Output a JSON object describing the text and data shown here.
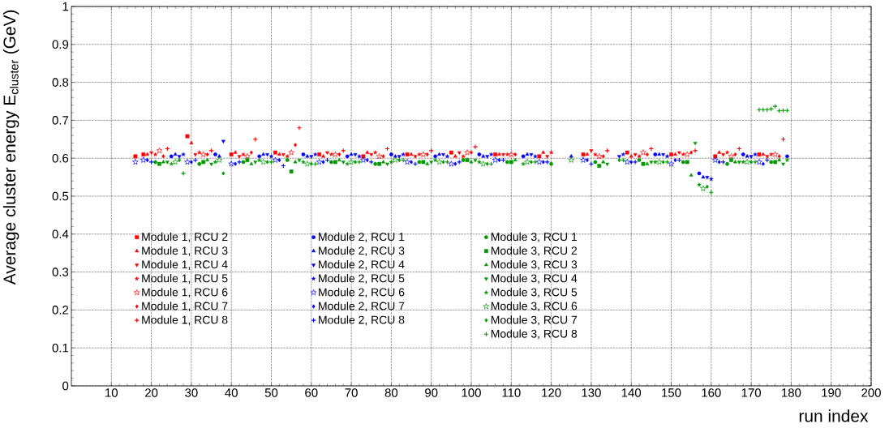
{
  "chart_data": {
    "type": "scatter",
    "xlabel": "run index",
    "ylabel": "Average cluster energy E$_{cluster}$ (GeV)",
    "xlim": [
      0,
      200
    ],
    "ylim": [
      0,
      1
    ],
    "xticks": [
      10,
      20,
      30,
      40,
      50,
      60,
      70,
      80,
      90,
      100,
      110,
      120,
      130,
      140,
      150,
      160,
      170,
      180,
      190,
      200
    ],
    "yticks": [
      0,
      0.1,
      0.2,
      0.3,
      0.4,
      0.5,
      0.6,
      0.7,
      0.8,
      0.9,
      1
    ],
    "grid": true,
    "legend": "bottom",
    "series": [
      {
        "name": "Module 1, RCU 2",
        "color": "#ff0000",
        "marker": "square",
        "x": [
          16,
          18,
          29,
          40,
          51,
          62,
          73,
          84,
          95,
          106,
          117,
          128,
          139,
          150,
          161,
          172
        ],
        "values": [
          0.605,
          0.61,
          0.658,
          0.61,
          0.615,
          0.61,
          0.605,
          0.61,
          0.615,
          0.61,
          0.605,
          0.61,
          0.615,
          0.61,
          0.605,
          0.61
        ]
      },
      {
        "name": "Module 1, RCU 3",
        "color": "#ff0000",
        "marker": "triangle",
        "x": [
          19,
          30,
          41,
          52,
          63,
          74,
          85,
          96,
          107,
          118,
          129,
          140,
          151,
          162,
          173
        ],
        "values": [
          0.61,
          0.64,
          0.615,
          0.61,
          0.605,
          0.615,
          0.61,
          0.605,
          0.61,
          0.615,
          0.61,
          0.605,
          0.61,
          0.615,
          0.61
        ]
      },
      {
        "name": "Module 1, RCU 4",
        "color": "#ff0000",
        "marker": "triangle-down",
        "x": [
          20,
          31,
          42,
          53,
          64,
          75,
          86,
          97,
          108,
          119,
          130,
          141,
          152,
          163,
          174
        ],
        "values": [
          0.615,
          0.61,
          0.605,
          0.61,
          0.615,
          0.61,
          0.605,
          0.615,
          0.61,
          0.605,
          0.62,
          0.61,
          0.615,
          0.61,
          0.605
        ]
      },
      {
        "name": "Module 1, RCU 5",
        "color": "#ff0000",
        "marker": "star",
        "x": [
          21,
          32,
          43,
          54,
          65,
          76,
          87,
          98,
          109,
          120,
          131,
          142,
          153,
          164,
          175
        ],
        "values": [
          0.61,
          0.615,
          0.61,
          0.605,
          0.61,
          0.615,
          0.61,
          0.605,
          0.61,
          0.615,
          0.61,
          0.605,
          0.61,
          0.615,
          0.61
        ]
      },
      {
        "name": "Module 1, RCU 6",
        "color": "#ff0000",
        "marker": "star-open",
        "x": [
          22,
          33,
          44,
          55,
          66,
          77,
          88,
          99,
          110,
          132,
          143,
          154,
          165,
          176
        ],
        "values": [
          0.62,
          0.61,
          0.605,
          0.615,
          0.61,
          0.605,
          0.61,
          0.615,
          0.61,
          0.605,
          0.615,
          0.61,
          0.605,
          0.61
        ]
      },
      {
        "name": "Module 1, RCU 7",
        "color": "#ff0000",
        "marker": "diamond",
        "x": [
          23,
          34,
          45,
          56,
          67,
          78,
          89,
          100,
          111,
          133,
          144,
          155,
          166,
          177
        ],
        "values": [
          0.605,
          0.61,
          0.615,
          0.635,
          0.61,
          0.605,
          0.61,
          0.615,
          0.61,
          0.605,
          0.61,
          0.615,
          0.61,
          0.605
        ]
      },
      {
        "name": "Module 1, RCU 8",
        "color": "#ff0000",
        "marker": "cross",
        "x": [
          24,
          35,
          46,
          57,
          68,
          79,
          90,
          101,
          134,
          145,
          156,
          167,
          178
        ],
        "values": [
          0.625,
          0.62,
          0.65,
          0.68,
          0.62,
          0.625,
          0.62,
          0.63,
          0.62,
          0.625,
          0.62,
          0.625,
          0.65
        ]
      },
      {
        "name": "Module 2, RCU 1",
        "color": "#0000ff",
        "marker": "circle",
        "x": [
          25,
          36,
          47,
          58,
          69,
          80,
          91,
          102,
          113,
          146,
          157,
          168,
          179
        ],
        "values": [
          0.605,
          0.61,
          0.605,
          0.61,
          0.605,
          0.61,
          0.605,
          0.61,
          0.605,
          0.61,
          0.56,
          0.61,
          0.605
        ]
      },
      {
        "name": "Module 2, RCU 3",
        "color": "#0000ff",
        "marker": "triangle",
        "x": [
          26,
          37,
          48,
          59,
          70,
          81,
          92,
          103,
          114,
          125,
          147,
          158,
          169
        ],
        "values": [
          0.61,
          0.605,
          0.61,
          0.605,
          0.61,
          0.605,
          0.61,
          0.605,
          0.61,
          0.605,
          0.61,
          0.55,
          0.605
        ]
      },
      {
        "name": "Module 2, RCU 4",
        "color": "#0000ff",
        "marker": "triangle-down",
        "x": [
          27,
          38,
          49,
          60,
          71,
          82,
          93,
          104,
          115,
          137,
          148,
          159,
          170
        ],
        "values": [
          0.605,
          0.645,
          0.61,
          0.605,
          0.61,
          0.605,
          0.61,
          0.605,
          0.61,
          0.605,
          0.61,
          0.55,
          0.605
        ]
      },
      {
        "name": "Module 2, RCU 5",
        "color": "#0000ff",
        "marker": "star",
        "x": [
          28,
          50,
          61,
          72,
          83,
          94,
          105,
          116,
          138,
          149,
          160,
          171
        ],
        "values": [
          0.61,
          0.605,
          0.61,
          0.605,
          0.61,
          0.605,
          0.61,
          0.605,
          0.61,
          0.605,
          0.545,
          0.61
        ]
      },
      {
        "name": "Module 2, RCU 6",
        "color": "#0000ff",
        "marker": "star-open",
        "x": [
          16,
          18,
          29,
          40,
          51,
          62,
          73,
          84,
          95,
          106,
          117,
          128,
          139,
          150,
          161,
          172
        ],
        "values": [
          0.59,
          0.595,
          0.59,
          0.585,
          0.595,
          0.59,
          0.595,
          0.59,
          0.585,
          0.595,
          0.59,
          0.595,
          0.59,
          0.585,
          0.595,
          0.59
        ]
      },
      {
        "name": "Module 2, RCU 7",
        "color": "#0000ff",
        "marker": "diamond",
        "x": [
          19,
          30,
          41,
          52,
          63,
          74,
          85,
          96,
          107,
          118,
          129,
          140,
          151,
          162,
          173
        ],
        "values": [
          0.595,
          0.59,
          0.585,
          0.595,
          0.59,
          0.595,
          0.59,
          0.585,
          0.595,
          0.59,
          0.595,
          0.59,
          0.595,
          0.59,
          0.585
        ]
      },
      {
        "name": "Module 2, RCU 8",
        "color": "#0000ff",
        "marker": "cross",
        "x": [
          20,
          31,
          42,
          53,
          64,
          75,
          86,
          97,
          108,
          119,
          130,
          141,
          152,
          163,
          174
        ],
        "values": [
          0.59,
          0.595,
          0.59,
          0.58,
          0.595,
          0.59,
          0.585,
          0.59,
          0.595,
          0.59,
          0.585,
          0.59,
          0.595,
          0.59,
          0.595
        ]
      },
      {
        "name": "Module 3, RCU 1",
        "color": "#009900",
        "marker": "circle",
        "x": [
          21,
          32,
          43,
          54,
          65,
          76,
          87,
          98,
          109,
          120,
          131,
          142,
          153,
          164,
          175
        ],
        "values": [
          0.59,
          0.585,
          0.59,
          0.595,
          0.59,
          0.585,
          0.59,
          0.595,
          0.59,
          0.585,
          0.59,
          0.595,
          0.59,
          0.585,
          0.59
        ]
      },
      {
        "name": "Module 3, RCU 2",
        "color": "#009900",
        "marker": "square",
        "x": [
          22,
          33,
          44,
          55,
          66,
          77,
          88,
          99,
          110,
          132,
          143,
          154,
          165,
          176
        ],
        "values": [
          0.585,
          0.59,
          0.595,
          0.565,
          0.59,
          0.585,
          0.59,
          0.595,
          0.59,
          0.58,
          0.585,
          0.59,
          0.595,
          0.59
        ]
      },
      {
        "name": "Module 3, RCU 3",
        "color": "#009900",
        "marker": "triangle",
        "x": [
          23,
          34,
          45,
          56,
          67,
          78,
          89,
          100,
          111,
          133,
          144,
          155,
          166,
          177
        ],
        "values": [
          0.59,
          0.595,
          0.585,
          0.59,
          0.595,
          0.59,
          0.585,
          0.59,
          0.595,
          0.59,
          0.585,
          0.555,
          0.59,
          0.595
        ]
      },
      {
        "name": "Module 3, RCU 4",
        "color": "#009900",
        "marker": "triangle-down",
        "x": [
          24,
          35,
          46,
          57,
          68,
          79,
          90,
          101,
          134,
          145,
          156,
          167,
          178
        ],
        "values": [
          0.59,
          0.585,
          0.59,
          0.595,
          0.59,
          0.585,
          0.59,
          0.595,
          0.585,
          0.59,
          0.64,
          0.59,
          0.585
        ]
      },
      {
        "name": "Module 3, RCU 5",
        "color": "#009900",
        "marker": "star",
        "x": [
          25,
          36,
          47,
          58,
          69,
          80,
          91,
          102,
          113,
          146,
          157,
          168,
          179
        ],
        "values": [
          0.585,
          0.59,
          0.595,
          0.59,
          0.585,
          0.59,
          0.595,
          0.59,
          0.585,
          0.59,
          0.53,
          0.59,
          0.595
        ]
      },
      {
        "name": "Module 3, RCU 6",
        "color": "#009900",
        "marker": "star-open",
        "x": [
          26,
          37,
          48,
          59,
          70,
          81,
          92,
          103,
          114,
          125,
          147,
          158,
          169
        ],
        "values": [
          0.59,
          0.595,
          0.59,
          0.585,
          0.59,
          0.595,
          0.59,
          0.585,
          0.59,
          0.595,
          0.59,
          0.52,
          0.59
        ]
      },
      {
        "name": "Module 3, RCU 7",
        "color": "#009900",
        "marker": "diamond",
        "x": [
          27,
          38,
          49,
          60,
          71,
          82,
          93,
          104,
          115,
          137,
          148,
          159,
          170
        ],
        "values": [
          0.595,
          0.56,
          0.59,
          0.585,
          0.59,
          0.595,
          0.59,
          0.585,
          0.59,
          0.595,
          0.59,
          0.525,
          0.59
        ]
      },
      {
        "name": "Module 3, RCU 8",
        "color": "#009900",
        "marker": "cross",
        "x": [
          28,
          50,
          61,
          72,
          83,
          94,
          105,
          116,
          138,
          149,
          160,
          171,
          172,
          173,
          174,
          175,
          176,
          177,
          178,
          179
        ],
        "values": [
          0.56,
          0.59,
          0.585,
          0.59,
          0.595,
          0.59,
          0.585,
          0.59,
          0.595,
          0.59,
          0.51,
          0.59,
          0.728,
          0.728,
          0.728,
          0.73,
          0.737,
          0.725,
          0.726,
          0.726
        ]
      }
    ]
  }
}
